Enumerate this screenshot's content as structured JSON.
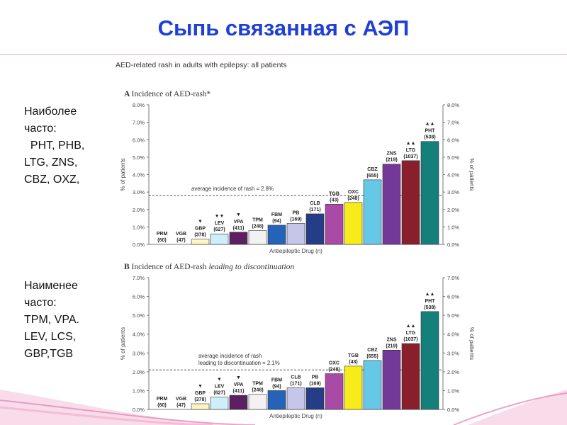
{
  "slide": {
    "title": "Сыпь связанная с АЭП",
    "side_top": [
      "Наиболее",
      "часто:",
      "  PHT, PHB,",
      "LTG, ZNS,",
      "CBZ, OXZ,"
    ],
    "side_bottom": [
      "Наименее",
      "часто:",
      "TPM, VPA.",
      "LEV, LCS,",
      "GBP,TGB"
    ]
  },
  "figure_title": "AED-related rash in adults with epilepsy: all patients",
  "chart_data": [
    {
      "type": "bar",
      "panel": "A",
      "title": "Incidence of AED-rash*",
      "xlabel": "Antiepileptic Drug (n)",
      "ylabel": "% of patients",
      "ylabel_right": "% of patients",
      "ylim": [
        0,
        8
      ],
      "yticks": [
        "0.0%",
        "1.0%",
        "2.0%",
        "3.0%",
        "4.0%",
        "5.0%",
        "6.0%",
        "7.0%",
        "8.0%"
      ],
      "average_line": 2.8,
      "average_label": "average incidence of rash = 2.8%",
      "grid": false,
      "categories": [
        "PRM",
        "VGB",
        "GBP",
        "LEV",
        "VPA",
        "TPM",
        "FBM",
        "PB",
        "CLB",
        "TGB",
        "OXC",
        "CBZ",
        "ZNS",
        "LTG",
        "PHT"
      ],
      "n": [
        "(60)",
        "(47)",
        "(378)",
        "(627)",
        "(411)",
        "(248)",
        "(94)",
        "(169)",
        "(171)",
        "(43)",
        "(248)",
        "(655)",
        "(219)",
        "(1037)",
        "(538)"
      ],
      "values": [
        0.0,
        0.0,
        0.3,
        0.6,
        0.7,
        0.8,
        1.1,
        1.2,
        1.75,
        2.3,
        2.4,
        3.7,
        4.6,
        4.8,
        5.9
      ],
      "markers": [
        "",
        "",
        "▼",
        "▼▼",
        "▼",
        "",
        "",
        "",
        "",
        "",
        "",
        "",
        "",
        "▲▲",
        "▲▲"
      ],
      "colors": [
        "#ffffff",
        "#ffffff",
        "#fff4c2",
        "#cfeefb",
        "#5c1f62",
        "#f2f2f2",
        "#2463b8",
        "#c5c6ea",
        "#243d86",
        "#a84aa6",
        "#f7ec1a",
        "#66c8e6",
        "#743898",
        "#8a1f2c",
        "#15807b"
      ]
    },
    {
      "type": "bar",
      "panel": "B",
      "title": "Incidence of AED-rash leading to discontinuation",
      "xlabel": "Antiepileptic Drug (n)",
      "ylabel": "% of patients",
      "ylabel_right": "% of patients",
      "ylim": [
        0,
        7
      ],
      "yticks": [
        "0.0%",
        "1.0%",
        "2.0%",
        "3.0%",
        "4.0%",
        "5.0%",
        "6.0%",
        "7.0%"
      ],
      "average_line": 2.1,
      "average_label": [
        "average incidence of rash",
        "leading to discontinuation = 2.1%"
      ],
      "grid": false,
      "categories": [
        "PRM",
        "VGB",
        "GBP",
        "LEV",
        "VPA",
        "TPM",
        "FBM",
        "CLB",
        "PB",
        "OXC",
        "TGB",
        "CBZ",
        "ZNS",
        "LTG",
        "PHT"
      ],
      "n": [
        "(60)",
        "(47)",
        "(378)",
        "(627)",
        "(411)",
        "(248)",
        "(94)",
        "(171)",
        "(169)",
        "(248)",
        "(43)",
        "(655)",
        "(219)",
        "(1037)",
        "(538)"
      ],
      "values": [
        0.0,
        0.0,
        0.3,
        0.65,
        0.75,
        0.8,
        1.0,
        1.15,
        1.15,
        1.9,
        2.3,
        2.6,
        3.15,
        3.5,
        5.2
      ],
      "markers": [
        "",
        "",
        "▼",
        "▼",
        "▼",
        "",
        "",
        "",
        "",
        "",
        "",
        "",
        "",
        "▲▲",
        "▲▲"
      ],
      "colors": [
        "#ffffff",
        "#ffffff",
        "#fff4c2",
        "#cfeefb",
        "#5c1f62",
        "#f2f2f2",
        "#2463b8",
        "#c5c6ea",
        "#243d86",
        "#a84aa6",
        "#f7ec1a",
        "#66c8e6",
        "#743898",
        "#8a1f2c",
        "#15807b"
      ]
    }
  ]
}
